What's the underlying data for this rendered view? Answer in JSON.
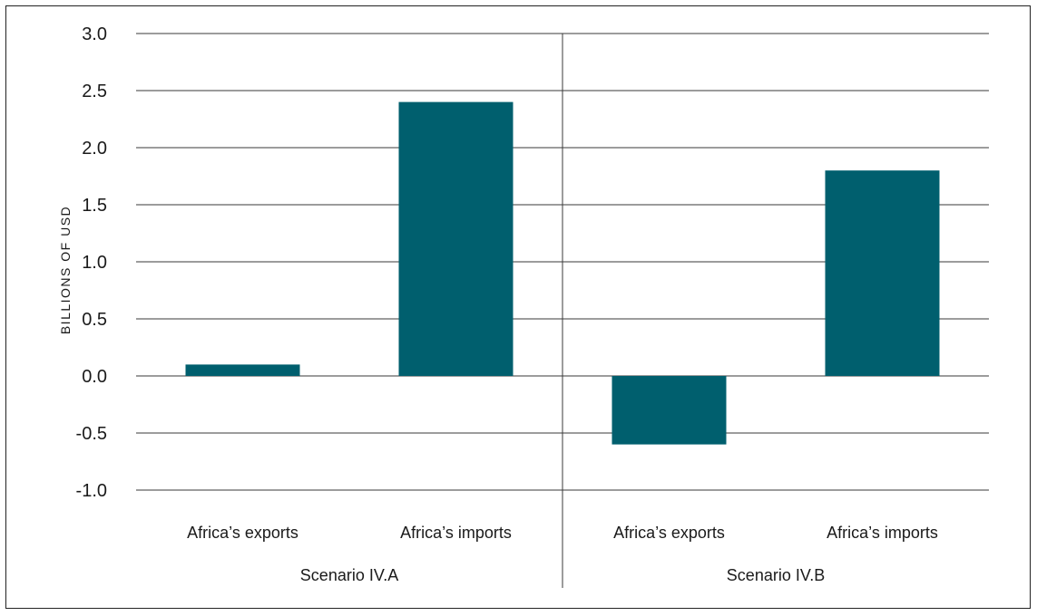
{
  "chart_data": {
    "type": "bar",
    "title": "",
    "ylabel": "BILLIONS OF USD",
    "xlabel": "",
    "ylim": [
      -1.0,
      3.0
    ],
    "yticks": [
      "3.0",
      "2.5",
      "2.0",
      "1.5",
      "1.0",
      "0.5",
      "0.0",
      "-0.5",
      "-1.0"
    ],
    "grid": true,
    "legend": "none",
    "bar_color": "#005f6e",
    "groups": [
      {
        "name": "Scenario IV.A",
        "categories": [
          "Africa’s exports",
          "Africa’s imports"
        ],
        "values": [
          0.1,
          2.4
        ]
      },
      {
        "name": "Scenario IV.B",
        "categories": [
          "Africa’s exports",
          "Africa’s imports"
        ],
        "values": [
          -0.6,
          1.8
        ]
      }
    ]
  }
}
